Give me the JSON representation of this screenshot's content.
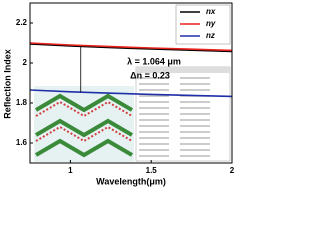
{
  "chart_data": {
    "type": "line",
    "x_label": "Wavelength(μm)",
    "y_label": "Reflection Index",
    "x": [
      0.75,
      1.0,
      1.25,
      1.5,
      1.75,
      2.0
    ],
    "series": [
      {
        "name": "nx",
        "color": "#000000",
        "values": [
          2.095,
          2.085,
          2.077,
          2.07,
          2.064,
          2.058
        ]
      },
      {
        "name": "ny",
        "color": "#e8221c",
        "values": [
          2.1,
          2.09,
          2.082,
          2.075,
          2.069,
          2.063
        ]
      },
      {
        "name": "nz",
        "color": "#1f2fa8",
        "values": [
          1.865,
          1.856,
          1.849,
          1.843,
          1.838,
          1.833
        ]
      }
    ],
    "xlim": [
      0.75,
      2.0
    ],
    "xticks": [
      1.0,
      1.5,
      2.0
    ],
    "ylim": [
      1.5,
      2.3
    ],
    "yticks": [
      1.6,
      1.8,
      2.0,
      2.2
    ],
    "legend": "upper right",
    "annotations": [
      "λ = 1.064 μm",
      "Δn = 0.23"
    ],
    "marker_x": 1.064
  }
}
